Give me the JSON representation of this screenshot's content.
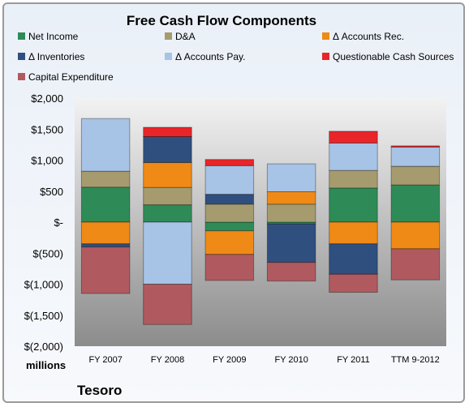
{
  "chart_data": {
    "type": "bar",
    "stacked": true,
    "title": "Free Cash Flow Components",
    "ylabel": "millions",
    "footer": "Tesoro",
    "categories": [
      "FY 2007",
      "FY 2008",
      "FY 2009",
      "FY 2010",
      "FY 2011",
      "TTM 9-2012"
    ],
    "ylim": [
      -2000,
      2000
    ],
    "yticks": [
      2000,
      1500,
      1000,
      500,
      0,
      -500,
      -1000,
      -1500,
      -2000
    ],
    "ytick_labels": [
      "$2,000",
      "$1,500",
      "$1,000",
      "$500",
      "$-",
      "$(500)",
      "$(1,000)",
      "$(1,500)",
      "$(2,000)"
    ],
    "legend_position": "top",
    "grid": false,
    "series": [
      {
        "name": "Net Income",
        "color": "#2e8b57",
        "values": [
          565,
          280,
          -140,
          -30,
          550,
          600
        ]
      },
      {
        "name": "D&A",
        "color": "#a59b6e",
        "values": [
          255,
          280,
          290,
          290,
          285,
          300
        ]
      },
      {
        "name": "Δ Accounts Rec.",
        "color": "#ef8a17",
        "values": [
          -350,
          400,
          -380,
          200,
          -350,
          -430
        ]
      },
      {
        "name": "Δ Inventories",
        "color": "#2f4f7f",
        "values": [
          -50,
          420,
          160,
          -620,
          -490,
          0
        ]
      },
      {
        "name": "Δ Accounts Pay.",
        "color": "#a7c3e6",
        "values": [
          850,
          -1000,
          460,
          450,
          440,
          310
        ]
      },
      {
        "name": "Questionable Cash Sources",
        "color": "#e8262a",
        "values": [
          0,
          150,
          100,
          0,
          190,
          20
        ]
      },
      {
        "name": "Capital Expenditure",
        "color": "#b05a5f",
        "values": [
          -750,
          -650,
          -420,
          -300,
          -290,
          -500
        ]
      }
    ]
  }
}
